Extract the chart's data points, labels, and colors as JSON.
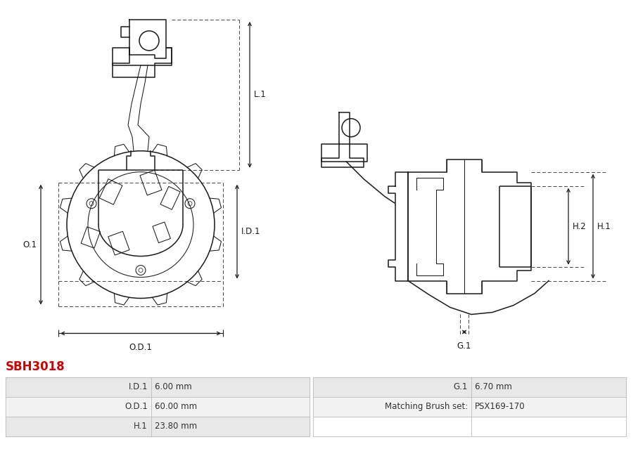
{
  "title": "SBH3018",
  "title_color": "#cc0000",
  "table_rows": [
    [
      "I.D.1",
      "6.00 mm",
      "G.1",
      "6.70 mm"
    ],
    [
      "O.D.1",
      "60.00 mm",
      "Matching Brush set:",
      "PSX169-170"
    ],
    [
      "H.1",
      "23.80 mm",
      "",
      ""
    ]
  ],
  "dim_labels": {
    "L1": "L.1",
    "OD1": "O.D.1",
    "ID1": "I.D.1",
    "O1": "O.1",
    "G1": "G.1",
    "H1": "H.1",
    "H2": "H.2"
  },
  "line_color": "#1a1a1a",
  "fig_width": 8.97,
  "fig_height": 6.39,
  "dpi": 100
}
